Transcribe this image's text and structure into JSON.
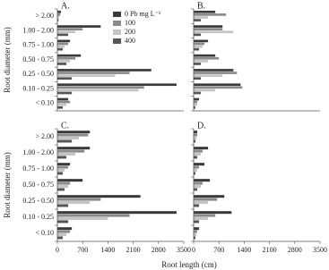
{
  "chart_data": [
    {
      "type": "bar",
      "orientation": "horizontal",
      "title": "A.",
      "y_label": "Root diameter (mm)",
      "categories": [
        "> 2.00",
        "1.00 - 2.00",
        "0.75 - 1.00",
        "0.50 - 0.75",
        "0.25 - 0.50",
        "0.10 - 0.25",
        "< 0.10"
      ],
      "xlim": [
        0,
        3500
      ],
      "legend": "upper right",
      "series": [
        {
          "name": "0 Pb mg L⁻¹",
          "color": "#3a3a3a",
          "values": [
            100,
            1200,
            350,
            650,
            2600,
            3300,
            300
          ]
        },
        {
          "name": "100",
          "color": "#8a8a8a",
          "values": [
            80,
            700,
            300,
            500,
            2000,
            2400,
            350
          ]
        },
        {
          "name": "200",
          "color": "#c4c4c4",
          "values": [
            50,
            500,
            200,
            350,
            1600,
            2250,
            250
          ]
        },
        {
          "name": "400",
          "color": "#555555",
          "values": [
            30,
            300,
            150,
            250,
            400,
            400,
            150
          ]
        }
      ]
    },
    {
      "type": "bar",
      "orientation": "horizontal",
      "title": "B.",
      "xlim": [
        0,
        3500
      ],
      "series": [
        {
          "color": "#3a3a3a",
          "values": [
            600,
            800,
            400,
            600,
            1100,
            1300,
            150
          ]
        },
        {
          "color": "#8a8a8a",
          "values": [
            900,
            800,
            300,
            700,
            1200,
            1350,
            100
          ]
        },
        {
          "color": "#c4c4c4",
          "values": [
            400,
            1100,
            250,
            400,
            800,
            600,
            100
          ]
        },
        {
          "color": "#555555",
          "values": [
            200,
            200,
            150,
            200,
            200,
            200,
            50
          ]
        }
      ]
    },
    {
      "type": "bar",
      "orientation": "horizontal",
      "title": "C.",
      "y_label": "Root diameter (mm)",
      "x_label": "Root length (cm)",
      "categories": [
        "> 2.00",
        "1.00 - 2.00",
        "0.75 - 1.00",
        "0.50 - 0.75",
        "0.25 - 0.50",
        "0.10 - 0.25",
        "< 0.10"
      ],
      "xlim": [
        0,
        3500
      ],
      "xticks": [
        0,
        700,
        1400,
        2100,
        2800,
        3500
      ],
      "series": [
        {
          "color": "#3a3a3a",
          "values": [
            900,
            900,
            350,
            700,
            2300,
            3300,
            400
          ]
        },
        {
          "color": "#8a8a8a",
          "values": [
            850,
            750,
            300,
            350,
            1200,
            2000,
            350
          ]
        },
        {
          "color": "#c4c4c4",
          "values": [
            600,
            500,
            200,
            300,
            900,
            1400,
            250
          ]
        },
        {
          "color": "#555555",
          "values": [
            400,
            250,
            150,
            200,
            300,
            300,
            150
          ]
        }
      ]
    },
    {
      "type": "bar",
      "orientation": "horizontal",
      "title": "D.",
      "xlim": [
        0,
        3500
      ],
      "xticks": [
        0,
        700,
        1400,
        2100,
        2800,
        3500
      ],
      "series": [
        {
          "color": "#3a3a3a",
          "values": [
            100,
            400,
            300,
            450,
            850,
            1050,
            150
          ]
        },
        {
          "color": "#8a8a8a",
          "values": [
            100,
            250,
            150,
            250,
            650,
            600,
            100
          ]
        },
        {
          "color": "#c4c4c4",
          "values": [
            80,
            200,
            100,
            200,
            400,
            400,
            80
          ]
        },
        {
          "color": "#555555",
          "values": [
            50,
            100,
            50,
            100,
            150,
            150,
            50
          ]
        }
      ]
    }
  ]
}
